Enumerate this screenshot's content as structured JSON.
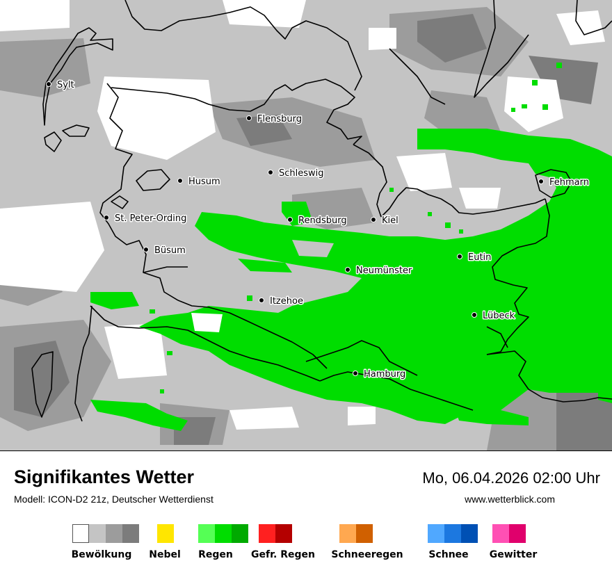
{
  "map": {
    "cities": [
      {
        "name": "Sylt",
        "id": "sylt"
      },
      {
        "name": "Flensburg",
        "id": "flensburg"
      },
      {
        "name": "Schleswig",
        "id": "schleswig"
      },
      {
        "name": "Husum",
        "id": "husum"
      },
      {
        "name": "Fehmarn",
        "id": "fehmarn"
      },
      {
        "name": "St. Peter-Ording",
        "id": "st-peter-ording"
      },
      {
        "name": "Rendsburg",
        "id": "rendsburg"
      },
      {
        "name": "Kiel",
        "id": "kiel"
      },
      {
        "name": "Büsum",
        "id": "buesum"
      },
      {
        "name": "Eutin",
        "id": "eutin"
      },
      {
        "name": "Neumünster",
        "id": "neumuenster"
      },
      {
        "name": "Itzehoe",
        "id": "itzehoe"
      },
      {
        "name": "Lübeck",
        "id": "luebeck"
      },
      {
        "name": "Hamburg",
        "id": "hamburg"
      }
    ],
    "colors": {
      "cloud_white": "#ffffff",
      "cloud_light": "#c4c4c4",
      "cloud_mid": "#9c9c9c",
      "cloud_dark": "#7c7c7c",
      "rain": "#00dd00",
      "coast": "#000000"
    }
  },
  "footer": {
    "title": "Signifikantes Wetter",
    "model": "Modell: ICON-D2 21z, Deutscher Wetterdienst",
    "datetime": "Mo, 06.04.2026 02:00 Uhr",
    "website": "www.wetterblick.com"
  },
  "legend": [
    {
      "label": "Bewölkung",
      "colors": [
        "#ffffff",
        "#c4c4c4",
        "#9c9c9c",
        "#7c7c7c"
      ]
    },
    {
      "label": "Nebel",
      "colors": [
        "#ffe600"
      ]
    },
    {
      "label": "Regen",
      "colors": [
        "#55ff55",
        "#00dd00",
        "#00aa00"
      ]
    },
    {
      "label": "Gefr. Regen",
      "colors": [
        "#ff2020",
        "#b40000"
      ]
    },
    {
      "label": "Schneeregen",
      "colors": [
        "#ffa850",
        "#d06000"
      ]
    },
    {
      "label": "Schnee",
      "colors": [
        "#50a8ff",
        "#1c78e0",
        "#0050b4"
      ]
    },
    {
      "label": "Gewitter",
      "colors": [
        "#ff50b4",
        "#e0006c"
      ]
    }
  ]
}
